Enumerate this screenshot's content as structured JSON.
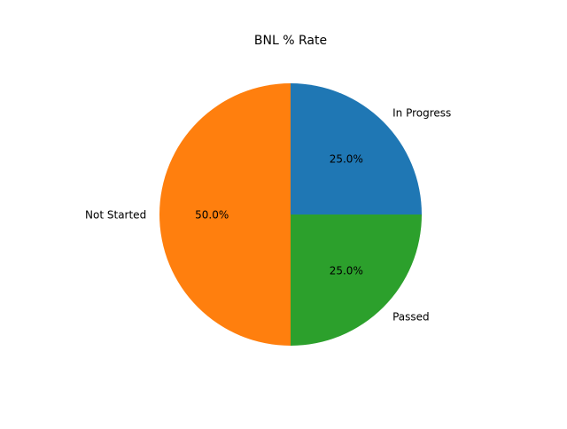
{
  "chart_data": {
    "type": "pie",
    "title": "BNL % Rate",
    "slices": [
      {
        "label": "In Progress",
        "value": 25.0,
        "pct_label": "25.0%",
        "color": "#1f77b4"
      },
      {
        "label": "Not Started",
        "value": 50.0,
        "pct_label": "50.0%",
        "color": "#ff7f0e"
      },
      {
        "label": "Passed",
        "value": 25.0,
        "pct_label": "25.0%",
        "color": "#2ca02c"
      }
    ],
    "legend": "none"
  }
}
